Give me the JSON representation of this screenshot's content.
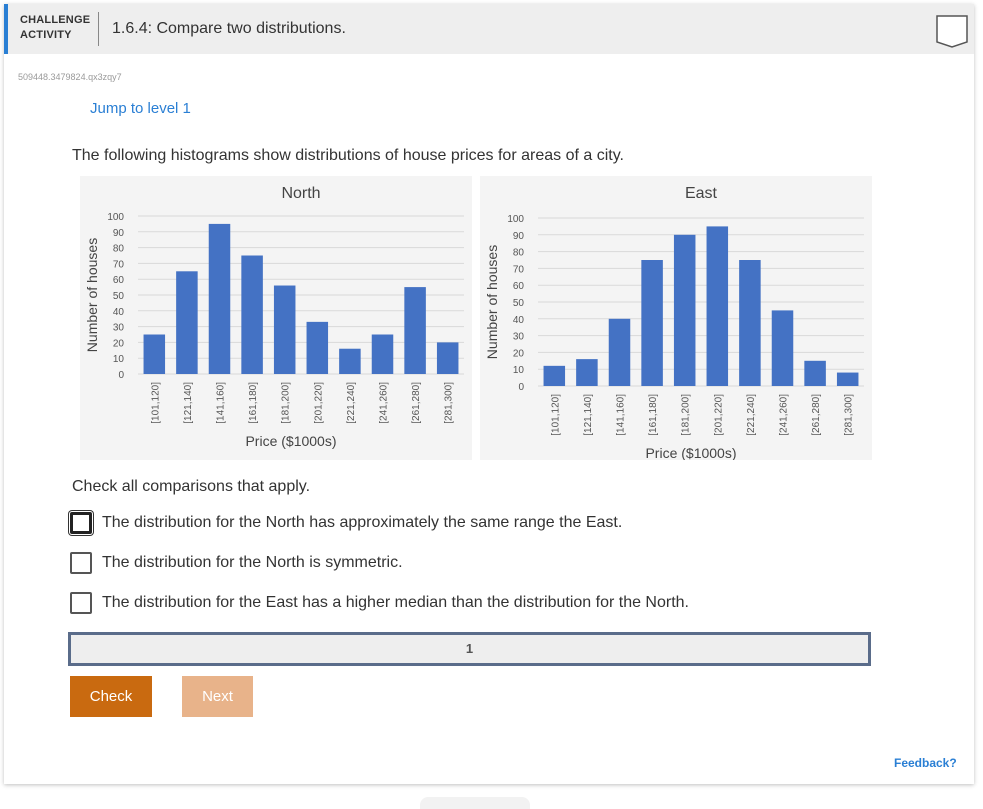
{
  "header": {
    "type_line1": "CHALLENGE",
    "type_line2": "ACTIVITY",
    "title": "1.6.4: Compare two distributions."
  },
  "code_id": "509448.3479824.qx3zqy7",
  "jump_link": "Jump to level 1",
  "prompt": "The following histograms show distributions of house prices for areas of a city.",
  "chart_data": [
    {
      "type": "bar",
      "title": "North",
      "xlabel": "Price ($1000s)",
      "ylabel": "Number of houses",
      "ylim": [
        0,
        100
      ],
      "yticks": [
        0,
        10,
        20,
        30,
        40,
        50,
        60,
        70,
        80,
        90,
        100
      ],
      "grid": true,
      "categories": [
        "[101,120]",
        "[121,140]",
        "[141,160]",
        "[161,180]",
        "[181,200]",
        "[201,220]",
        "[221,240]",
        "[241,260]",
        "[261,280]",
        "[281,300]"
      ],
      "values": [
        25,
        65,
        95,
        75,
        56,
        33,
        16,
        25,
        55,
        20
      ],
      "bar_color": "#4472c4"
    },
    {
      "type": "bar",
      "title": "East",
      "xlabel": "Price ($1000s)",
      "ylabel": "Number of houses",
      "ylim": [
        0,
        100
      ],
      "yticks": [
        0,
        10,
        20,
        30,
        40,
        50,
        60,
        70,
        80,
        90,
        100
      ],
      "grid": true,
      "categories": [
        "[101,120]",
        "[121,140]",
        "[141,160]",
        "[161,180]",
        "[181,200]",
        "[201,220]",
        "[221,240]",
        "[241,260]",
        "[261,280]",
        "[281,300]"
      ],
      "values": [
        12,
        16,
        40,
        75,
        90,
        95,
        75,
        45,
        15,
        8
      ],
      "bar_color": "#4472c4"
    }
  ],
  "check_prompt": "Check all comparisons that apply.",
  "options": [
    {
      "label": "The distribution for the North has approximately the same range the East.",
      "checked": false
    },
    {
      "label": "The distribution for the North is symmetric.",
      "checked": false
    },
    {
      "label": "The distribution for the East has a higher median than the distribution for the North.",
      "checked": false
    }
  ],
  "progress": {
    "current_level": "1"
  },
  "buttons": {
    "check": "Check",
    "next": "Next"
  },
  "feedback": "Feedback?",
  "colors": {
    "accent": "#2a7fd4",
    "check_button": "#c96a10",
    "next_button": "#e8b38a",
    "bar": "#4472c4"
  }
}
